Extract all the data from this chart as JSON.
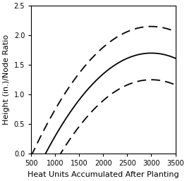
{
  "title": "",
  "xlabel": "Heat Units Accumulated After Planting",
  "ylabel": "Height (in.)/Node Ratio",
  "xlim": [
    500,
    3500
  ],
  "ylim": [
    0.0,
    2.5
  ],
  "xticks": [
    500,
    1000,
    1500,
    2000,
    2500,
    3000,
    3500
  ],
  "yticks": [
    0.0,
    0.5,
    1.0,
    1.5,
    2.0,
    2.5
  ],
  "curve_color": "#000000",
  "background_color": "#ffffff",
  "solid_coeffs": [
    -3.5e-07,
    0.0021,
    -1.45
  ],
  "upper_dash_coeffs": [
    -3.5e-07,
    0.0021,
    -1.0
  ],
  "lower_dash_coeffs": [
    -3.5e-07,
    0.0021,
    -1.9
  ],
  "x_start": 500,
  "x_end": 3500,
  "figsize": [
    2.65,
    2.57
  ],
  "dpi": 100,
  "xlabel_fontsize": 8.0,
  "ylabel_fontsize": 8.0,
  "tick_fontsize": 7.0
}
